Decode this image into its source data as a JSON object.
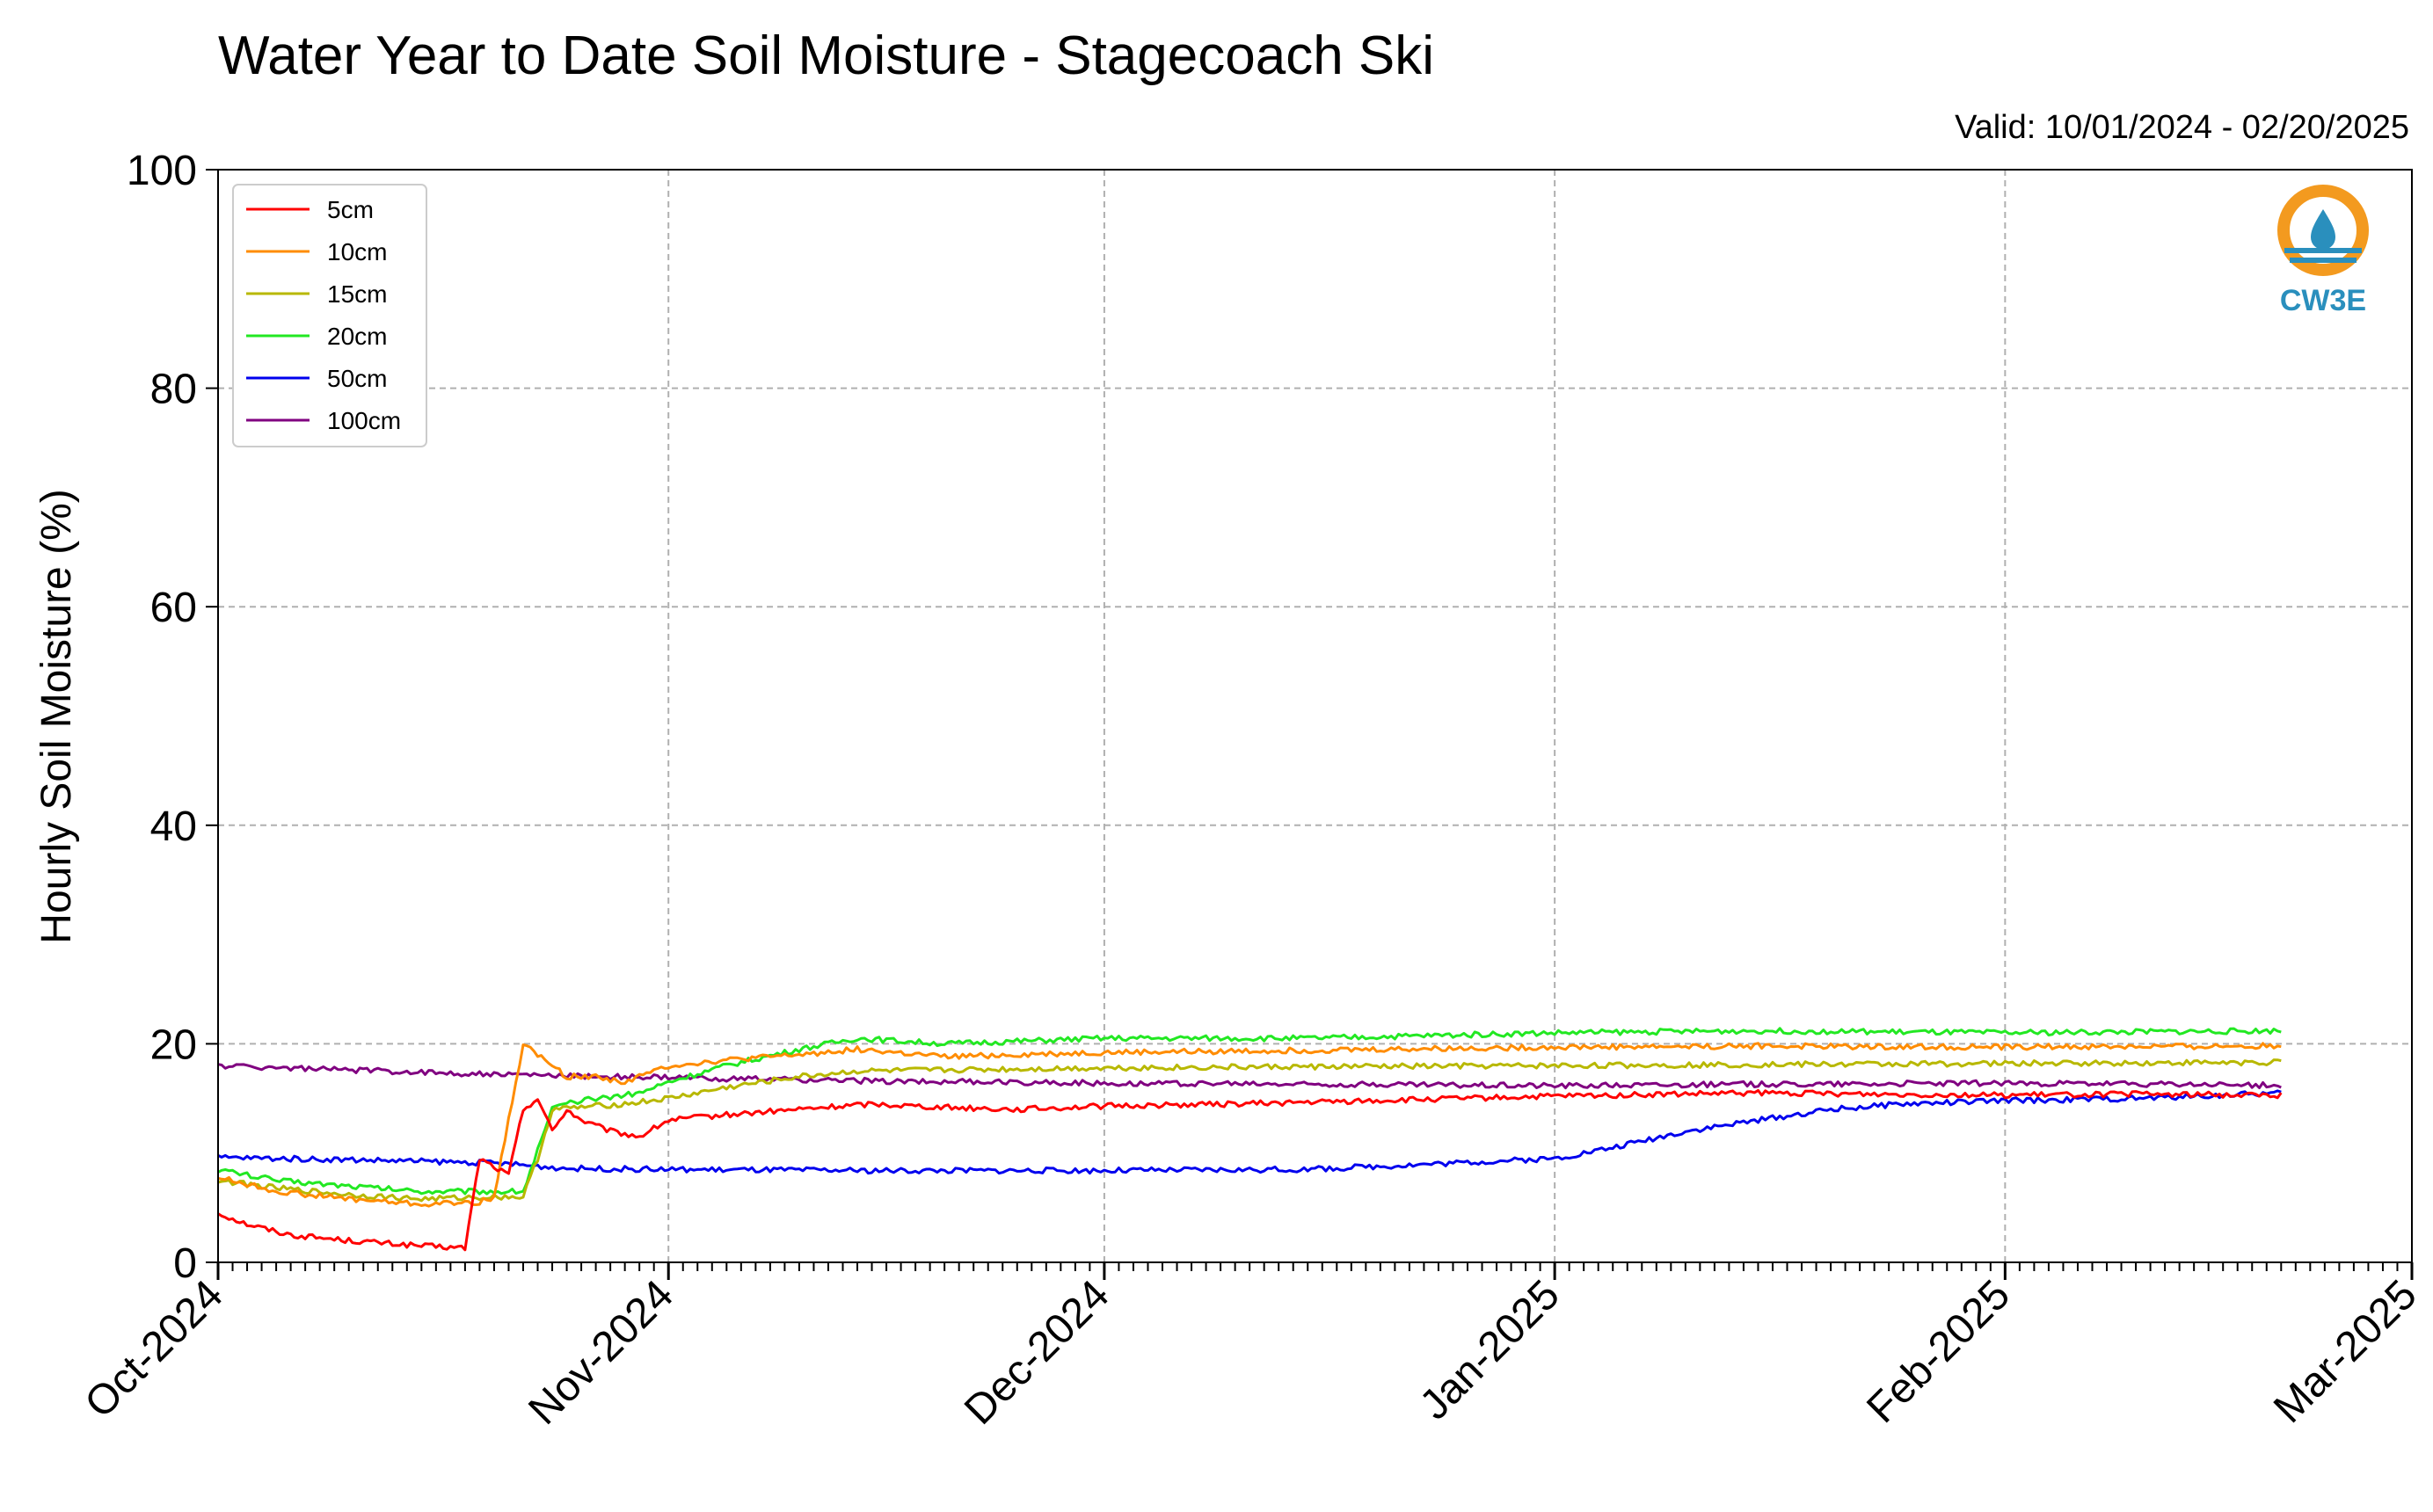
{
  "title": "Water Year to Date Soil Moisture - Stagecoach Ski",
  "valid": "Valid: 10/01/2024 - 02/20/2025",
  "logo": {
    "text": "CW3E",
    "icon": "water-drop-icon",
    "color_ring": "#f39a1f",
    "color_blue": "#2a8fbd"
  },
  "chart_data": {
    "type": "line",
    "title": "Water Year to Date Soil Moisture - Stagecoach Ski",
    "xlabel": "",
    "ylabel": "Hourly Soil Moisture (%)",
    "ylim": [
      0,
      100
    ],
    "yticks": [
      0,
      20,
      40,
      60,
      80,
      100
    ],
    "xlim": [
      "2024-10-01",
      "2025-03-01"
    ],
    "xticks": [
      "2024-10-01",
      "2024-11-01",
      "2024-12-01",
      "2025-01-01",
      "2025-02-01",
      "2025-03-01"
    ],
    "xtick_labels": [
      "Oct-2024",
      "Nov-2024",
      "Dec-2024",
      "Jan-2025",
      "Feb-2025",
      "Mar-2025"
    ],
    "grid": true,
    "legend": "top-left",
    "series": [
      {
        "name": "5cm",
        "color": "#ff0000",
        "x": [
          "2024-10-01",
          "2024-10-03",
          "2024-10-06",
          "2024-10-10",
          "2024-10-15",
          "2024-10-18",
          "2024-10-19",
          "2024-10-21",
          "2024-10-22",
          "2024-10-23",
          "2024-10-24",
          "2024-10-25",
          "2024-10-26",
          "2024-10-28",
          "2024-10-30",
          "2024-11-01",
          "2024-11-05",
          "2024-11-10",
          "2024-11-15",
          "2024-11-20",
          "2024-11-25",
          "2024-12-01",
          "2024-12-10",
          "2024-12-20",
          "2025-01-01",
          "2025-01-15",
          "2025-02-01",
          "2025-02-10",
          "2025-02-20"
        ],
        "y": [
          4.5,
          3.5,
          2.5,
          2,
          1.5,
          1.3,
          9.5,
          8,
          14,
          15,
          12,
          14,
          13,
          12,
          11.5,
          13,
          13.5,
          14,
          14.5,
          14.2,
          14,
          14.3,
          14.5,
          14.8,
          15.2,
          15.5,
          15.3,
          15.4,
          15.3
        ]
      },
      {
        "name": "10cm",
        "color": "#ff8c00",
        "x": [
          "2024-10-01",
          "2024-10-05",
          "2024-10-10",
          "2024-10-15",
          "2024-10-19",
          "2024-10-20",
          "2024-10-21",
          "2024-10-22",
          "2024-10-24",
          "2024-10-25",
          "2024-10-27",
          "2024-10-29",
          "2024-11-01",
          "2024-11-05",
          "2024-11-10",
          "2024-11-14",
          "2024-11-20",
          "2024-11-25",
          "2024-12-01",
          "2024-12-15",
          "2025-01-01",
          "2025-01-15",
          "2025-02-01",
          "2025-02-20"
        ],
        "y": [
          7.8,
          6.5,
          5.8,
          5.3,
          5.5,
          6,
          13,
          20,
          18,
          17,
          17,
          16.5,
          18,
          18.5,
          19,
          19.5,
          18.8,
          19,
          19.2,
          19.4,
          19.7,
          19.8,
          19.7,
          19.8
        ]
      },
      {
        "name": "15cm",
        "color": "#b8b800",
        "x": [
          "2024-10-01",
          "2024-10-05",
          "2024-10-10",
          "2024-10-15",
          "2024-10-20",
          "2024-10-22",
          "2024-10-23",
          "2024-10-24",
          "2024-10-26",
          "2024-10-29",
          "2024-11-01",
          "2024-11-05",
          "2024-11-10",
          "2024-11-14",
          "2024-11-20",
          "2024-12-01",
          "2024-12-15",
          "2025-01-01",
          "2025-01-15",
          "2025-02-01",
          "2025-02-20"
        ],
        "y": [
          7.5,
          6.8,
          6.2,
          5.8,
          6,
          6,
          9.5,
          14,
          14.2,
          14.5,
          15,
          16,
          17,
          17.5,
          17.6,
          17.8,
          17.9,
          18,
          18.1,
          18.2,
          18.3
        ]
      },
      {
        "name": "20cm",
        "color": "#22e822",
        "x": [
          "2024-10-01",
          "2024-10-05",
          "2024-10-10",
          "2024-10-15",
          "2024-10-20",
          "2024-10-22",
          "2024-10-24",
          "2024-10-25",
          "2024-10-27",
          "2024-10-30",
          "2024-11-01",
          "2024-11-05",
          "2024-11-10",
          "2024-11-14",
          "2024-11-20",
          "2024-12-01",
          "2024-12-15",
          "2025-01-01",
          "2025-01-15",
          "2025-02-01",
          "2025-02-20"
        ],
        "y": [
          8.5,
          7.5,
          7,
          6.5,
          6.5,
          6.5,
          14,
          14.5,
          15,
          15.5,
          16.5,
          18,
          19.5,
          20.5,
          20,
          20.5,
          20.5,
          21,
          21.2,
          21,
          21.2
        ]
      },
      {
        "name": "50cm",
        "color": "#0000ee",
        "x": [
          "2024-10-01",
          "2024-10-10",
          "2024-10-20",
          "2024-10-25",
          "2024-11-01",
          "2024-11-15",
          "2024-12-01",
          "2024-12-15",
          "2025-01-01",
          "2025-01-05",
          "2025-01-10",
          "2025-01-15",
          "2025-01-20",
          "2025-01-25",
          "2025-02-01",
          "2025-02-10",
          "2025-02-20"
        ],
        "y": [
          9.6,
          9.4,
          9.1,
          8.6,
          8.5,
          8.4,
          8.4,
          8.5,
          9.5,
          10.5,
          12,
          13,
          14,
          14.5,
          14.8,
          15,
          15.5
        ]
      },
      {
        "name": "100cm",
        "color": "#800080",
        "x": [
          "2024-10-01",
          "2024-10-10",
          "2024-10-20",
          "2024-11-01",
          "2024-11-15",
          "2024-12-01",
          "2024-12-15",
          "2025-01-01",
          "2025-01-15",
          "2025-02-01",
          "2025-02-20"
        ],
        "y": [
          18,
          17.6,
          17.2,
          16.9,
          16.6,
          16.4,
          16.3,
          16.2,
          16.3,
          16.4,
          16.2
        ]
      }
    ]
  }
}
